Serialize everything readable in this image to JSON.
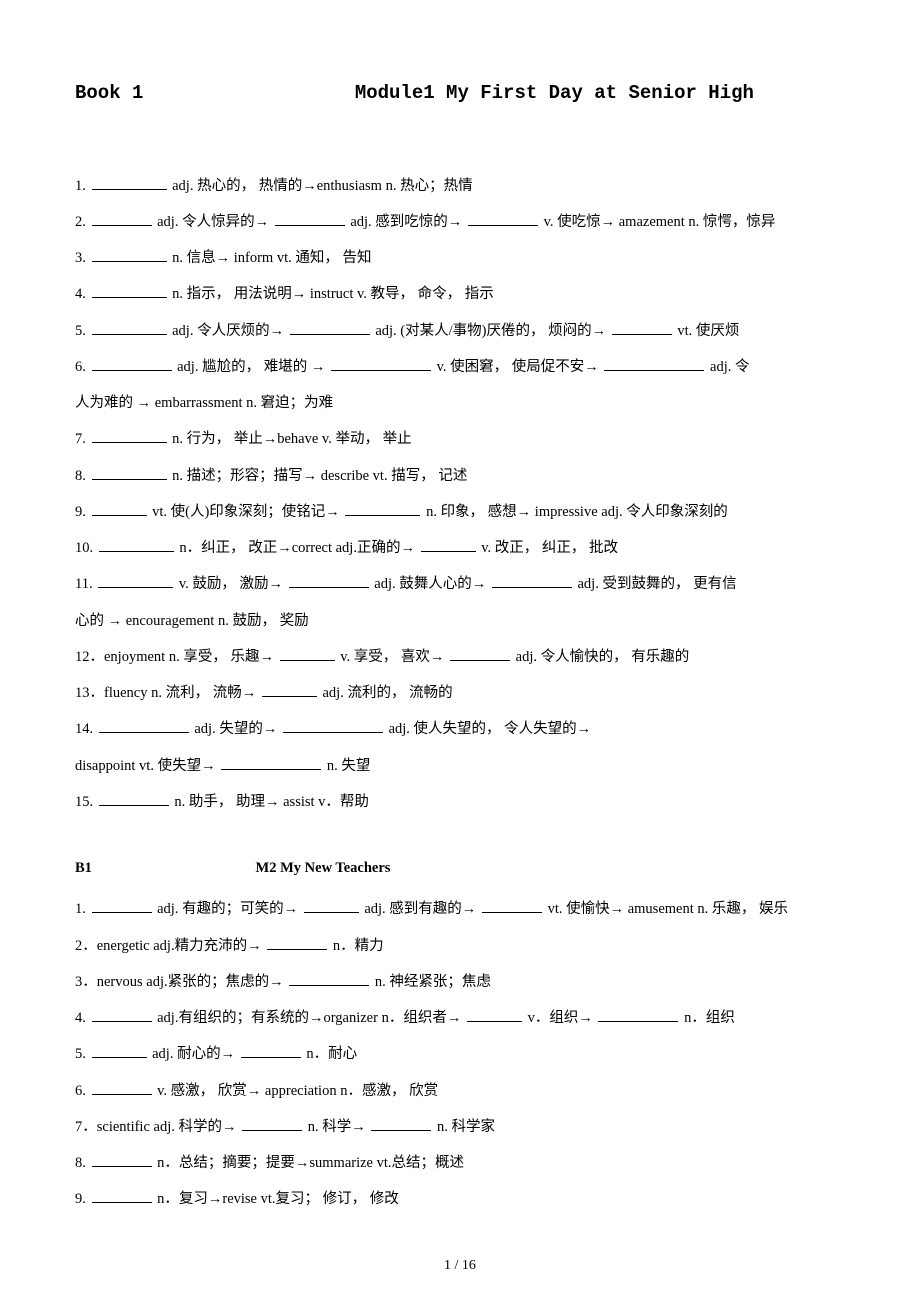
{
  "header": {
    "book": "Book 1",
    "module": "Module1  My First Day at Senior High"
  },
  "module1_items": [
    {
      "num": "1.  ",
      "parts": [
        {
          "t": "b",
          "w": "75"
        },
        {
          "t": "txt",
          "v": "  adj. 热心的，  热情的→enthusiasm   n. 热心；热情"
        }
      ]
    },
    {
      "num": "2.  ",
      "parts": [
        {
          "t": "b",
          "w": "60"
        },
        {
          "t": "txt",
          "v": " adj. 令人惊异的→ "
        },
        {
          "t": "b",
          "w": "70"
        },
        {
          "t": "txt",
          "v": " adj. 感到吃惊的→ "
        },
        {
          "t": "b",
          "w": "70"
        },
        {
          "t": "txt",
          "v": " v. 使吃惊→  amazement   n. 惊愕，惊异"
        }
      ]
    },
    {
      "num": "3.   ",
      "parts": [
        {
          "t": "b",
          "w": "75"
        },
        {
          "t": "txt",
          "v": "  n. 信息→  inform   vt. 通知，  告知"
        }
      ]
    },
    {
      "num": "4.   ",
      "parts": [
        {
          "t": "b",
          "w": "75"
        },
        {
          "t": "txt",
          "v": "  n. 指示，  用法说明→  instruct v. 教导，  命令，  指示"
        }
      ]
    },
    {
      "num": "5.   ",
      "parts": [
        {
          "t": "b",
          "w": "75"
        },
        {
          "t": "txt",
          "v": "  adj. 令人厌烦的→   "
        },
        {
          "t": "b",
          "w": "80"
        },
        {
          "t": "txt",
          "v": "  adj. (对某人/事物)厌倦的，  烦闷的→ "
        },
        {
          "t": "b",
          "w": "60"
        },
        {
          "t": "txt",
          "v": "  vt. 使厌烦"
        }
      ]
    },
    {
      "num": "6.   ",
      "parts": [
        {
          "t": "b",
          "w": "80"
        },
        {
          "t": "txt",
          "v": "   adj. 尴尬的，  难堪的  →  "
        },
        {
          "t": "b",
          "w": "100"
        },
        {
          "t": "txt",
          "v": "  v. 使困窘，  使局促不安→  "
        },
        {
          "t": "b",
          "w": "100"
        },
        {
          "t": "txt",
          "v": "   adj. 令"
        }
      ]
    },
    {
      "num": "",
      "parts": [
        {
          "t": "txt",
          "v": "人为难的  →  embarrassment n. 窘迫；为难"
        }
      ]
    },
    {
      "num": "7.   ",
      "parts": [
        {
          "t": "b",
          "w": "75"
        },
        {
          "t": "txt",
          "v": "  n. 行为，  举止→behave   v. 举动，  举止"
        }
      ]
    },
    {
      "num": "8.   ",
      "parts": [
        {
          "t": "b",
          "w": "75"
        },
        {
          "t": "txt",
          "v": "   n. 描述；形容；描写→  describe vt. 描写，   记述"
        }
      ]
    },
    {
      "num": "9.   ",
      "parts": [
        {
          "t": "b",
          "w": "55"
        },
        {
          "t": "txt",
          "v": "   vt. 使(人)印象深刻；使铭记→  "
        },
        {
          "t": "b",
          "w": "75"
        },
        {
          "t": "txt",
          "v": "  n. 印象，  感想→  impressive adj. 令人印象深刻的"
        }
      ]
    },
    {
      "num": "10. ",
      "parts": [
        {
          "t": "b",
          "w": "75"
        },
        {
          "t": "txt",
          "v": "    n．纠正，  改正→correct adj.正确的→          "
        },
        {
          "t": "b",
          "w": "55"
        },
        {
          "t": "txt",
          "v": "   v. 改正，   纠正，   批改"
        }
      ]
    },
    {
      "num": "11. ",
      "parts": [
        {
          "t": "b",
          "w": "75"
        },
        {
          "t": "txt",
          "v": "    v. 鼓励，  激励→    "
        },
        {
          "t": "b",
          "w": "80"
        },
        {
          "t": "txt",
          "v": "   adj. 鼓舞人心的→   "
        },
        {
          "t": "b",
          "w": "80"
        },
        {
          "t": "txt",
          "v": "   adj. 受到鼓舞的，  更有信"
        }
      ]
    },
    {
      "num": "",
      "parts": [
        {
          "t": "txt",
          "v": "心的  →  encouragement n. 鼓励，  奖励"
        }
      ]
    },
    {
      "num": "12．",
      "parts": [
        {
          "t": "txt",
          "v": "enjoyment n. 享受，  乐趣→ "
        },
        {
          "t": "b",
          "w": "55"
        },
        {
          "t": "txt",
          "v": "    v. 享受，   喜欢→  "
        },
        {
          "t": "b",
          "w": "60"
        },
        {
          "t": "txt",
          "v": "    adj. 令人愉快的，   有乐趣的"
        }
      ]
    },
    {
      "num": "13．",
      "parts": [
        {
          "t": "txt",
          "v": "fluency n. 流利，  流畅→   "
        },
        {
          "t": "b",
          "w": "55"
        },
        {
          "t": "txt",
          "v": "   adj. 流利的，  流畅的"
        }
      ]
    },
    {
      "num": "14. ",
      "parts": [
        {
          "t": "b",
          "w": "90"
        },
        {
          "t": "txt",
          "v": "    adj. 失望的→   "
        },
        {
          "t": "b",
          "w": "100"
        },
        {
          "t": "txt",
          "v": "    adj. 使人失望的，   令人失望的→"
        }
      ]
    },
    {
      "num": "",
      "parts": [
        {
          "t": "txt",
          "v": "disappoint vt. 使失望→   "
        },
        {
          "t": "b",
          "w": "100"
        },
        {
          "t": "txt",
          "v": "    n. 失望"
        }
      ]
    },
    {
      "num": "15. ",
      "parts": [
        {
          "t": "b",
          "w": "70"
        },
        {
          "t": "txt",
          "v": "    n. 助手，   助理→  assist v．帮助"
        }
      ]
    }
  ],
  "section2_header": {
    "b1": "B1",
    "title": "M2 My New Teachers"
  },
  "module2_items": [
    {
      "num": "1. ",
      "parts": [
        {
          "t": "b",
          "w": "60"
        },
        {
          "t": "txt",
          "v": " adj. 有趣的；可笑的→  "
        },
        {
          "t": "b",
          "w": "55"
        },
        {
          "t": "txt",
          "v": " adj. 感到有趣的→   "
        },
        {
          "t": "b",
          "w": "60"
        },
        {
          "t": "txt",
          "v": " vt. 使愉快→  amusement n. 乐趣，  娱乐"
        }
      ]
    },
    {
      "num": "2．",
      "parts": [
        {
          "t": "txt",
          "v": "energetic adj.精力充沛的→    "
        },
        {
          "t": "b",
          "w": "60"
        },
        {
          "t": "txt",
          "v": " n．精力"
        }
      ]
    },
    {
      "num": "3．",
      "parts": [
        {
          "t": "txt",
          "v": "nervous adj.紧张的；焦虑的→    "
        },
        {
          "t": "b",
          "w": "80"
        },
        {
          "t": "txt",
          "v": "    n. 神经紧张；焦虑"
        }
      ]
    },
    {
      "num": "4. ",
      "parts": [
        {
          "t": "b",
          "w": "60"
        },
        {
          "t": "txt",
          "v": "   adj.有组织的；有系统的→organizer n．组织者→ "
        },
        {
          "t": "b",
          "w": "55"
        },
        {
          "t": "txt",
          "v": "    v．组织→      "
        },
        {
          "t": "b",
          "w": "80"
        },
        {
          "t": "txt",
          "v": " n．组织"
        }
      ]
    },
    {
      "num": "5. ",
      "parts": [
        {
          "t": "b",
          "w": "55"
        },
        {
          "t": "txt",
          "v": " adj. 耐心的→   "
        },
        {
          "t": "b",
          "w": "60"
        },
        {
          "t": "txt",
          "v": "  n．耐心"
        }
      ]
    },
    {
      "num": "6. ",
      "parts": [
        {
          "t": "b",
          "w": "60"
        },
        {
          "t": "txt",
          "v": "   v. 感激，  欣赏→  appreciation n．感激，  欣赏"
        }
      ]
    },
    {
      "num": "7．",
      "parts": [
        {
          "t": "txt",
          "v": "scientific adj. 科学的→   "
        },
        {
          "t": "b",
          "w": "60"
        },
        {
          "t": "txt",
          "v": "    n. 科学→   "
        },
        {
          "t": "b",
          "w": "60"
        },
        {
          "t": "txt",
          "v": "  n. 科学家"
        }
      ]
    },
    {
      "num": "8. ",
      "parts": [
        {
          "t": "b",
          "w": "60"
        },
        {
          "t": "txt",
          "v": "       n．总结；摘要；提要→summarize vt.总结；概述"
        }
      ]
    },
    {
      "num": "9. ",
      "parts": [
        {
          "t": "b",
          "w": "60"
        },
        {
          "t": "txt",
          "v": "      n．复习→revise vt.复习；  修订，  修改"
        }
      ]
    }
  ],
  "page_number": "1  / 16"
}
